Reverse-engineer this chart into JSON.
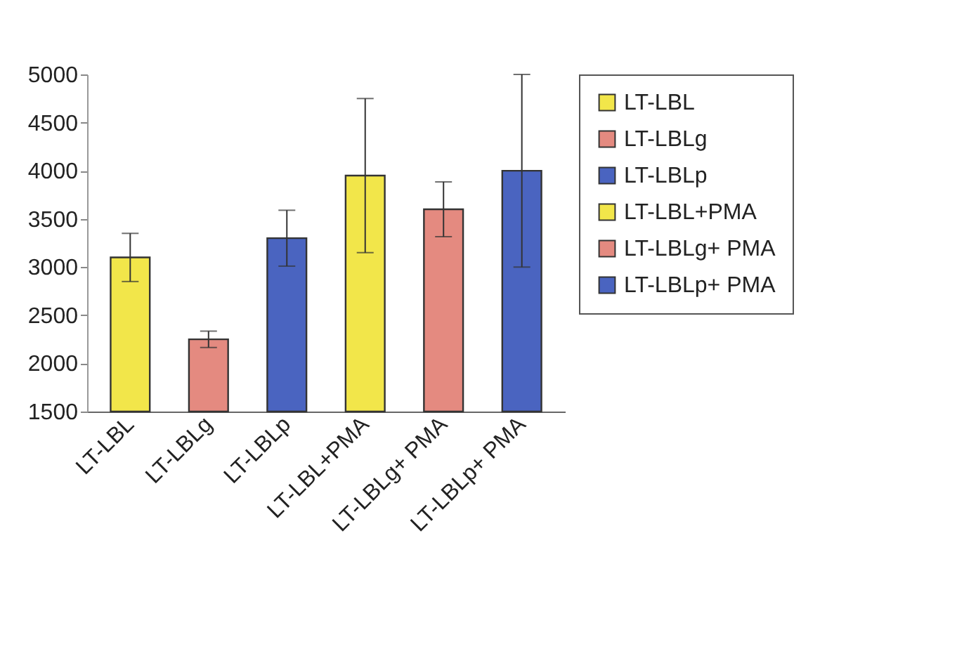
{
  "chart_data": {
    "type": "bar",
    "categories": [
      "LT-LBL",
      "LT-LBLg",
      "LT-LBLp",
      "LT-LBL+PMA",
      "LT-LBLg+ PMA",
      "LT-LBLp+ PMA"
    ],
    "series": [
      {
        "name": "LT-LBL",
        "color": "#f2e64a",
        "values": [
          3100,
          null,
          null,
          null,
          null,
          null
        ],
        "errors": [
          250,
          null,
          null,
          null,
          null,
          null
        ]
      },
      {
        "name": "LT-LBLg",
        "color": "#e48a80",
        "values": [
          null,
          2250,
          null,
          null,
          null,
          null
        ],
        "errors": [
          null,
          85,
          null,
          null,
          null,
          null
        ]
      },
      {
        "name": "LT-LBLp",
        "color": "#4a64c0",
        "values": [
          null,
          null,
          3300,
          null,
          null,
          null
        ],
        "errors": [
          null,
          null,
          290,
          null,
          null,
          null
        ]
      },
      {
        "name": "LT-LBL+PMA",
        "color": "#f2e64a",
        "values": [
          null,
          null,
          null,
          3950,
          null,
          null
        ],
        "errors": [
          null,
          null,
          null,
          800,
          null,
          null
        ]
      },
      {
        "name": "LT-LBLg+ PMA",
        "color": "#e48a80",
        "values": [
          null,
          null,
          null,
          null,
          3600,
          null
        ],
        "errors": [
          null,
          null,
          null,
          null,
          285,
          null
        ]
      },
      {
        "name": "LT-LBLp+ PMA",
        "color": "#4a64c0",
        "values": [
          null,
          null,
          null,
          null,
          null,
          4000
        ],
        "errors": [
          null,
          null,
          null,
          null,
          null,
          1000
        ]
      }
    ],
    "ylim": [
      1500,
      5000
    ],
    "yticks": [
      1500,
      2000,
      2500,
      3000,
      3500,
      4000,
      4500,
      5000
    ],
    "grid": false,
    "legend": "right"
  }
}
